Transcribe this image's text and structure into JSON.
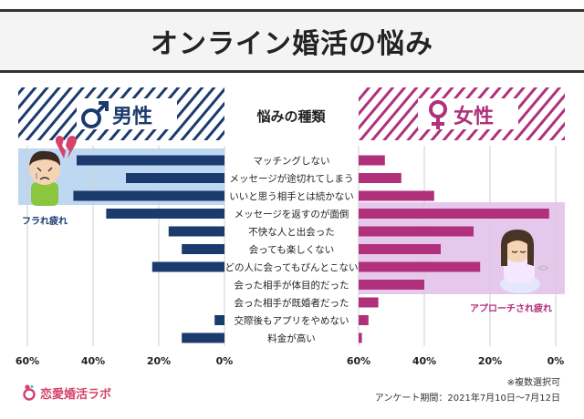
{
  "title": "オンライン婚活の悩み",
  "headers": {
    "male": "男性",
    "female": "女性",
    "center": "悩みの種類"
  },
  "callouts": {
    "male": "フラれ疲れ",
    "female": "アプローチされ疲れ"
  },
  "notes": {
    "multiple": "※複数選択可",
    "period": "アンケート期間：2021年7月10日～7月12日"
  },
  "brand": {
    "name": "恋愛婚活ラボ"
  },
  "colors": {
    "male": "#1b3a6e",
    "female": "#b0307c",
    "male_highlight": "#bfd8f2",
    "female_highlight": "#e6c8ec",
    "brand": "#d3436b"
  },
  "icons": {
    "male_symbol": "male-symbol-icon",
    "female_symbol": "female-symbol-icon",
    "broken_heart": "broken-heart-icon",
    "tired_man": "tired-man-illustration",
    "tired_woman": "tired-woman-illustration"
  },
  "chart_data": {
    "type": "bar",
    "orientation": "horizontal",
    "layout": "butterfly",
    "title": "オンライン婚活の悩み",
    "categories": [
      "マッチングしない",
      "メッセージが途切れてしまう",
      "いいと思う相手とは続かない",
      "メッセージを返すのが面倒",
      "不快な人と出会った",
      "会っても楽しくない",
      "どの人に会ってもぴんとこない",
      "会った相手が体目的だった",
      "会った相手が既婚者だった",
      "交際後もアプリをやめない",
      "料金が高い"
    ],
    "series": [
      {
        "name": "男性",
        "values": [
          45,
          30,
          46,
          36,
          17,
          13,
          22,
          0,
          0,
          3,
          13
        ]
      },
      {
        "name": "女性",
        "values": [
          8,
          13,
          23,
          58,
          35,
          25,
          37,
          20,
          6,
          3,
          1
        ]
      }
    ],
    "highlights": [
      {
        "series": "男性",
        "categories": [
          "マッチングしない",
          "メッセージが途切れてしまう",
          "いいと思う相手とは続かない"
        ],
        "label": "フラれ疲れ"
      },
      {
        "series": "女性",
        "categories": [
          "メッセージを返すのが面倒",
          "不快な人と出会った",
          "会っても楽しくない",
          "どの人に会ってもぴんとこない",
          "会った相手が体目的だった"
        ],
        "label": "アプローチされ疲れ"
      }
    ],
    "xaxis_ticks": [
      "60%",
      "40%",
      "20%",
      "0%"
    ],
    "xlim": [
      0,
      60
    ],
    "unit": "%",
    "grid": true
  }
}
